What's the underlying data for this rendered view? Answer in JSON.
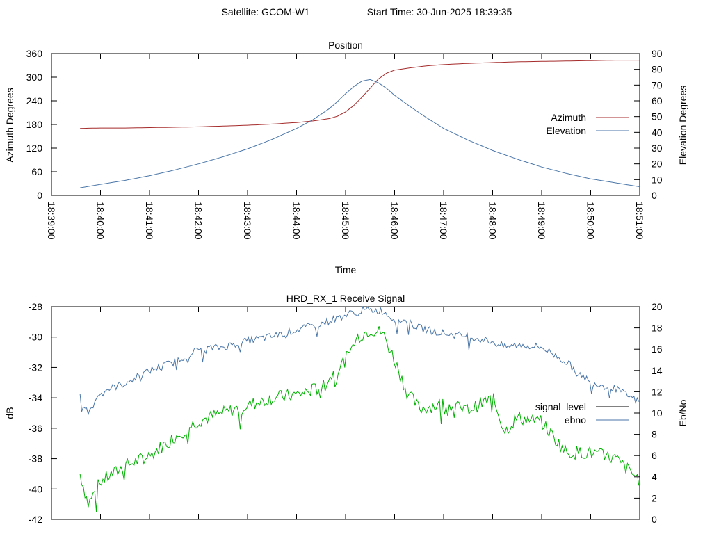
{
  "header": {
    "satellite": "Satellite: GCOM-W1",
    "start_time": "Start Time: 30-Jun-2025 18:39:35"
  },
  "chart_data": [
    {
      "type": "line",
      "title": "Position",
      "xlabel": "Time",
      "ylabel": "Azimuth Degrees",
      "y2label": "Elevation Degrees",
      "x_ticks": [
        "18:39:00",
        "18:40:00",
        "18:41:00",
        "18:42:00",
        "18:43:00",
        "18:44:00",
        "18:45:00",
        "18:46:00",
        "18:47:00",
        "18:48:00",
        "18:49:00",
        "18:50:00",
        "18:51:00"
      ],
      "xlim": [
        "18:39:00",
        "18:51:00"
      ],
      "ylim": [
        0,
        360
      ],
      "y_ticks": [
        0,
        60,
        120,
        180,
        240,
        300,
        360
      ],
      "y2lim": [
        0,
        90
      ],
      "y2_ticks": [
        0,
        10,
        20,
        30,
        40,
        50,
        60,
        70,
        80,
        90
      ],
      "legend_position": "right",
      "colors": {
        "azimuth": "#a52a2a",
        "elevation": "#4a76a8"
      },
      "x": [
        "18:39:35",
        "18:40:00",
        "18:40:30",
        "18:41:00",
        "18:41:30",
        "18:42:00",
        "18:42:30",
        "18:43:00",
        "18:43:30",
        "18:44:00",
        "18:44:20",
        "18:44:40",
        "18:44:50",
        "18:45:00",
        "18:45:10",
        "18:45:20",
        "18:45:30",
        "18:45:40",
        "18:45:50",
        "18:46:00",
        "18:46:20",
        "18:46:40",
        "18:47:00",
        "18:47:30",
        "18:48:00",
        "18:48:30",
        "18:49:00",
        "18:49:30",
        "18:50:00",
        "18:50:30",
        "18:51:00"
      ],
      "series": [
        {
          "name": "Azimuth",
          "axis": "y",
          "values": [
            170,
            171,
            171,
            172,
            173,
            174,
            176,
            178,
            181,
            185,
            189,
            195,
            201,
            212,
            228,
            249,
            272,
            295,
            310,
            318,
            324,
            329,
            332,
            335,
            337,
            339,
            340,
            341,
            342,
            343,
            343
          ]
        },
        {
          "name": "Elevation",
          "axis": "y2",
          "values": [
            4.8,
            7.0,
            9.5,
            12.5,
            16.0,
            20.0,
            24.5,
            29.5,
            35.5,
            42.5,
            48.0,
            55.0,
            59.5,
            64.5,
            69.0,
            72.5,
            73.5,
            71.5,
            68.0,
            63.5,
            56.0,
            49.0,
            42.5,
            35.0,
            28.5,
            23.0,
            18.0,
            14.0,
            10.5,
            8.0,
            5.5
          ]
        }
      ]
    },
    {
      "type": "line",
      "title": "HRD_RX_1 Receive Signal",
      "xlabel": "",
      "ylabel": "dB",
      "y2label": "Eb/No",
      "xlim": [
        "18:39:00",
        "18:51:00"
      ],
      "ylim": [
        -42,
        -28
      ],
      "y_ticks": [
        -42,
        -40,
        -38,
        -36,
        -34,
        -32,
        -30,
        -28
      ],
      "y2lim": [
        0,
        20
      ],
      "y2_ticks": [
        0,
        2,
        4,
        6,
        8,
        10,
        12,
        14,
        16,
        18,
        20
      ],
      "legend_position": "right",
      "colors": {
        "signal_level": "#000000",
        "ebno": "#4a76a8",
        "signal_level_plot": "#00b000"
      },
      "x": [
        "18:39:35",
        "18:39:45",
        "18:40:00",
        "18:40:30",
        "18:41:00",
        "18:41:30",
        "18:42:00",
        "18:42:30",
        "18:43:00",
        "18:43:30",
        "18:44:00",
        "18:44:30",
        "18:45:00",
        "18:45:15",
        "18:45:30",
        "18:45:45",
        "18:46:00",
        "18:46:15",
        "18:46:30",
        "18:47:00",
        "18:47:30",
        "18:48:00",
        "18:48:15",
        "18:48:30",
        "18:49:00",
        "18:49:30",
        "18:50:00",
        "18:50:30",
        "18:51:00"
      ],
      "series": [
        {
          "name": "signal_level",
          "axis": "y",
          "values": [
            -39.0,
            -41.0,
            -39.5,
            -38.5,
            -37.8,
            -36.6,
            -35.5,
            -35.0,
            -34.5,
            -34.0,
            -33.8,
            -33.3,
            -31.5,
            -30.0,
            -29.5,
            -29.7,
            -31.5,
            -33.6,
            -34.7,
            -34.4,
            -34.8,
            -34.0,
            -36.2,
            -35.3,
            -35.6,
            -37.6,
            -37.6,
            -38.0,
            -39.4
          ]
        },
        {
          "name": "ebno",
          "axis": "y2",
          "values": [
            11.5,
            10.0,
            12.0,
            12.8,
            14.0,
            14.8,
            16.0,
            16.2,
            16.8,
            17.2,
            17.8,
            18.4,
            19.2,
            19.6,
            19.7,
            19.6,
            18.8,
            18.6,
            18.0,
            17.5,
            17.2,
            16.7,
            16.2,
            16.4,
            16.2,
            14.8,
            12.9,
            12.3,
            11.0
          ]
        }
      ]
    }
  ]
}
